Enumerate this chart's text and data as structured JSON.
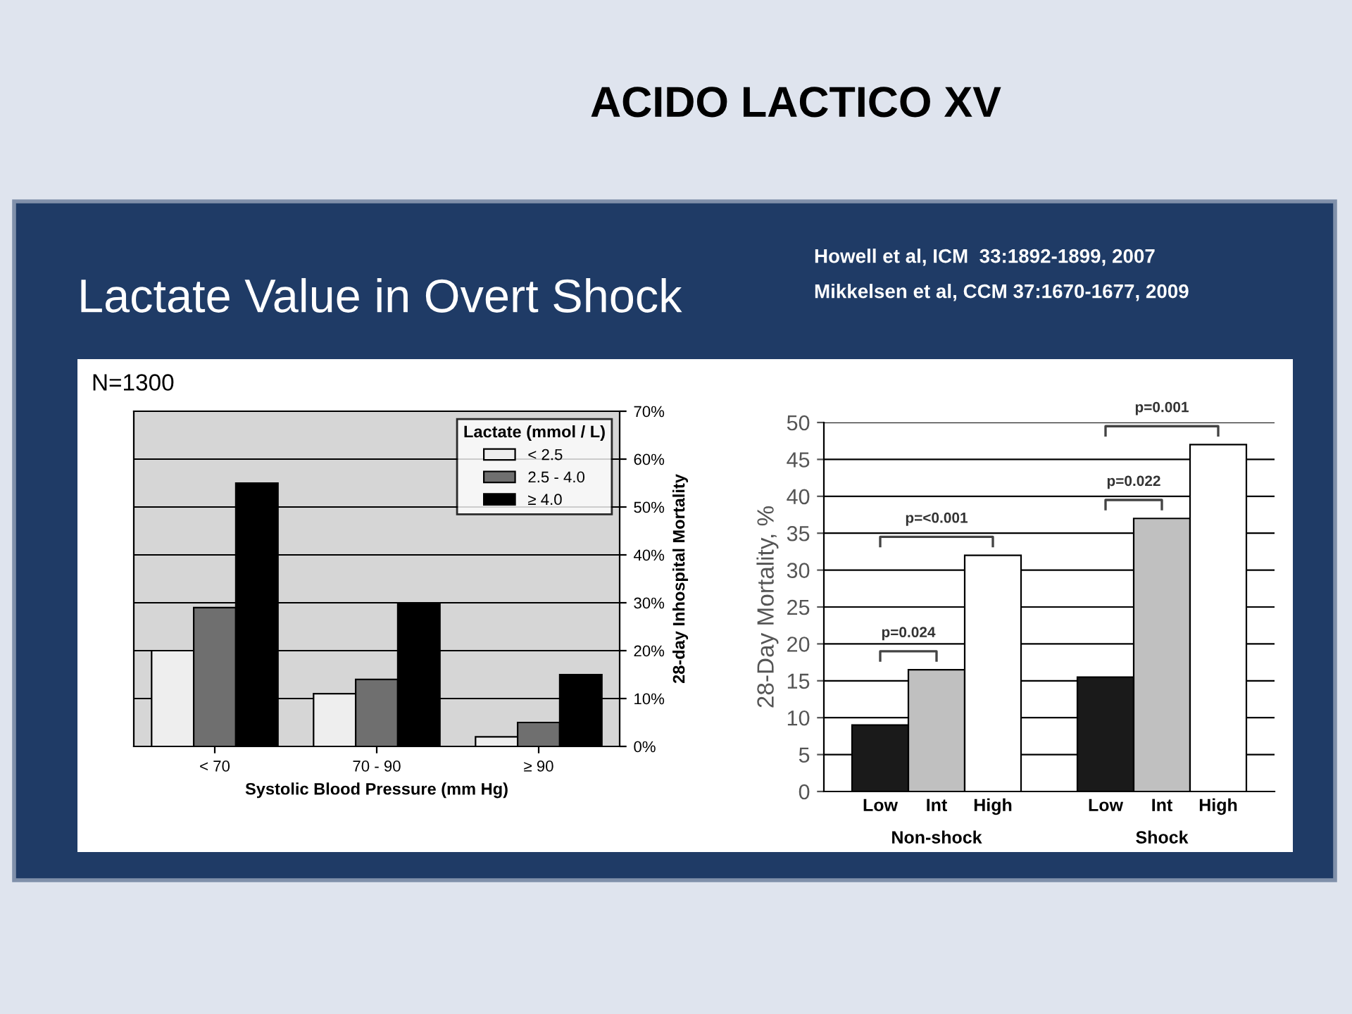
{
  "chart_data": [
    {
      "type": "bar",
      "title": "ACIDO LACTICO XV",
      "subtitle": "Lactate Value in Overt Shock",
      "annotations": [
        "Howell et al, ICM  33:1892-1899, 2007",
        "N=1300"
      ],
      "xlabel": "Systolic Blood Pressure (mm Hg)",
      "ylabel": "28-day Inhospital Mortality",
      "legend_title": "Lactate (mmol / L)",
      "categories": [
        "< 70",
        "70 - 90",
        "≥ 90"
      ],
      "series": [
        {
          "name": "< 2.5",
          "color": "#eeeeee",
          "values": [
            20,
            11,
            2
          ]
        },
        {
          "name": "2.5 - 4.0",
          "color": "#6f6f6f",
          "values": [
            29,
            14,
            5
          ]
        },
        {
          "name": "≥ 4.0",
          "color": "#000000",
          "values": [
            55,
            30,
            15
          ]
        }
      ],
      "ylim": [
        0,
        70
      ],
      "yticks": [
        {
          "value": 0,
          "label": "0%"
        },
        {
          "value": 10,
          "label": "10%"
        },
        {
          "value": 20,
          "label": "20%"
        },
        {
          "value": 30,
          "label": "30%"
        },
        {
          "value": 40,
          "label": "40%"
        },
        {
          "value": 50,
          "label": "50%"
        },
        {
          "value": 60,
          "label": "60%"
        },
        {
          "value": 70,
          "label": "70%"
        }
      ],
      "grid": "y",
      "legend": "top right"
    },
    {
      "type": "bar",
      "ylabel": "28-Day Mortality, %",
      "annotations": [
        "Mikkelsen et al, CCM 37:1670-1677, 2009",
        "p=0.024",
        "p=<0.001",
        "p=0.022",
        "p=0.001"
      ],
      "categories": [
        "Non-shock",
        "Shock"
      ],
      "series": [
        {
          "name": "Low",
          "color": "#1a1a1a",
          "values": [
            9,
            15.5
          ]
        },
        {
          "name": "Int",
          "color": "#c0c0c0",
          "values": [
            16.5,
            37
          ]
        },
        {
          "name": "High",
          "color": "#ffffff",
          "values": [
            32,
            47
          ]
        }
      ],
      "ylim": [
        0,
        50
      ],
      "yticks": [
        0,
        5,
        10,
        15,
        20,
        25,
        30,
        35,
        40,
        45,
        50
      ],
      "grid": "y"
    }
  ]
}
